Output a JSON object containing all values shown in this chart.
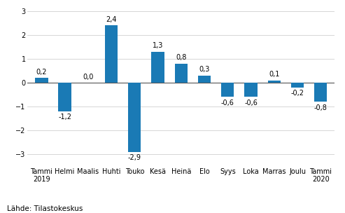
{
  "categories": [
    "Tammi\n2019",
    "Helmi",
    "Maalis",
    "Huhti",
    "Touko",
    "Kesä",
    "Heinä",
    "Elo",
    "Syys",
    "Loka",
    "Marras",
    "Joulu",
    "Tammi\n2020"
  ],
  "values": [
    0.2,
    -1.2,
    0.0,
    2.4,
    -2.9,
    1.3,
    0.8,
    0.3,
    -0.6,
    -0.6,
    0.1,
    -0.2,
    -0.8
  ],
  "bar_color": "#1a7ab5",
  "ylim": [
    -3.5,
    3.2
  ],
  "yticks": [
    -3,
    -2,
    -1,
    0,
    1,
    2,
    3
  ],
  "source_label": "Lähde: Tilastokeskus",
  "label_fontsize": 7,
  "tick_fontsize": 7,
  "source_fontsize": 7.5,
  "bar_width": 0.55
}
